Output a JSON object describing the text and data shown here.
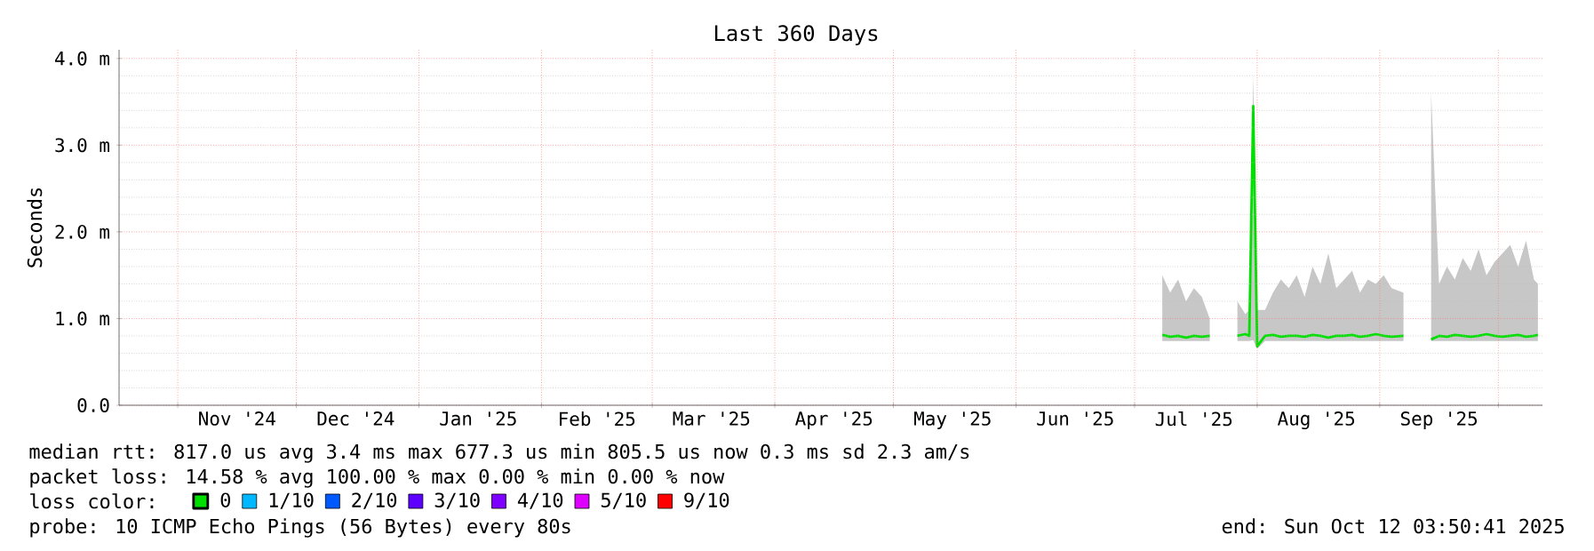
{
  "chart_data": {
    "type": "line",
    "title": "Last 360 Days",
    "ylabel": "Seconds",
    "xlim": [
      "2024-10-17T03:50",
      "2025-10-12T03:50"
    ],
    "xticks": [
      {
        "value": "2024-11-01",
        "label": null
      },
      {
        "value": "2024-11-16",
        "label": "Nov '24"
      },
      {
        "value": "2024-12-01",
        "label": null
      },
      {
        "value": "2024-12-16",
        "label": "Dec '24"
      },
      {
        "value": "2025-01-01",
        "label": null
      },
      {
        "value": "2025-01-16",
        "label": "Jan '25"
      },
      {
        "value": "2025-02-01",
        "label": null
      },
      {
        "value": "2025-02-15",
        "label": "Feb '25"
      },
      {
        "value": "2025-03-01",
        "label": null
      },
      {
        "value": "2025-03-16",
        "label": "Mar '25"
      },
      {
        "value": "2025-04-01",
        "label": null
      },
      {
        "value": "2025-04-16",
        "label": "Apr '25"
      },
      {
        "value": "2025-05-01",
        "label": null
      },
      {
        "value": "2025-05-16",
        "label": "May '25"
      },
      {
        "value": "2025-06-01",
        "label": null
      },
      {
        "value": "2025-06-16",
        "label": "Jun '25"
      },
      {
        "value": "2025-07-01",
        "label": null
      },
      {
        "value": "2025-07-16",
        "label": "Jul '25"
      },
      {
        "value": "2025-08-01",
        "label": null
      },
      {
        "value": "2025-08-16",
        "label": "Aug '25"
      },
      {
        "value": "2025-09-01",
        "label": null
      },
      {
        "value": "2025-09-16",
        "label": "Sep '25"
      },
      {
        "value": "2025-10-01",
        "label": null
      }
    ],
    "ylim": [
      0,
      4.1
    ],
    "yticks": [
      {
        "value": 0,
        "label": "0.0"
      },
      {
        "value": 1,
        "label": "1.0 m"
      },
      {
        "value": 2,
        "label": "2.0 m"
      },
      {
        "value": 3,
        "label": "3.0 m"
      },
      {
        "value": 4,
        "label": "4.0 m"
      }
    ],
    "grid": true,
    "legend": "bottom",
    "legend_title": "loss color:",
    "series": [
      {
        "name": "0",
        "color": "#00e000",
        "x": [
          "2025-07-08",
          "2025-07-10",
          "2025-07-12",
          "2025-07-14",
          "2025-07-16",
          "2025-07-18",
          "2025-07-20",
          "2025-07-23",
          "2025-07-27",
          "2025-07-29",
          "2025-07-30",
          "2025-07-31",
          "2025-08-01",
          "2025-08-03",
          "2025-08-05",
          "2025-08-07",
          "2025-08-09",
          "2025-08-11",
          "2025-08-13",
          "2025-08-15",
          "2025-08-17",
          "2025-08-19",
          "2025-08-21",
          "2025-08-23",
          "2025-08-25",
          "2025-08-27",
          "2025-08-29",
          "2025-08-31",
          "2025-09-02",
          "2025-09-04",
          "2025-09-07",
          "2025-09-10",
          "2025-09-14",
          "2025-09-16",
          "2025-09-18",
          "2025-09-20",
          "2025-09-22",
          "2025-09-24",
          "2025-09-26",
          "2025-09-28",
          "2025-09-30",
          "2025-10-02",
          "2025-10-04",
          "2025-10-06",
          "2025-10-08",
          "2025-10-10",
          "2025-10-11"
        ],
        "values": [
          0.81,
          0.79,
          0.8,
          0.78,
          0.8,
          0.79,
          0.8,
          null,
          0.8,
          0.82,
          0.8,
          3.45,
          0.68,
          0.8,
          0.81,
          0.79,
          0.8,
          0.8,
          0.79,
          0.81,
          0.8,
          0.78,
          0.8,
          0.8,
          0.81,
          0.79,
          0.8,
          0.82,
          0.8,
          0.79,
          0.8,
          null,
          0.76,
          0.8,
          0.79,
          0.81,
          0.8,
          0.79,
          0.8,
          0.82,
          0.8,
          0.79,
          0.8,
          0.81,
          0.79,
          0.8,
          0.81
        ],
        "lower": [
          0.74,
          0.74,
          0.74,
          0.74,
          0.74,
          0.74,
          0.74,
          null,
          0.74,
          0.74,
          0.74,
          0.75,
          0.65,
          0.74,
          0.74,
          0.74,
          0.74,
          0.74,
          0.74,
          0.74,
          0.74,
          0.74,
          0.74,
          0.74,
          0.74,
          0.74,
          0.74,
          0.74,
          0.74,
          0.74,
          0.74,
          null,
          0.74,
          0.74,
          0.74,
          0.74,
          0.74,
          0.74,
          0.74,
          0.74,
          0.74,
          0.74,
          0.74,
          0.74,
          0.74,
          0.74,
          0.74
        ],
        "upper": [
          1.5,
          1.3,
          1.45,
          1.2,
          1.35,
          1.25,
          1.0,
          null,
          1.2,
          1.05,
          1.1,
          3.8,
          1.1,
          1.1,
          1.3,
          1.45,
          1.35,
          1.5,
          1.25,
          1.6,
          1.4,
          1.75,
          1.35,
          1.45,
          1.55,
          1.3,
          1.45,
          1.4,
          1.5,
          1.35,
          1.3,
          null,
          3.6,
          1.4,
          1.6,
          1.45,
          1.7,
          1.55,
          1.8,
          1.5,
          1.65,
          1.75,
          1.85,
          1.6,
          1.9,
          1.45,
          1.4
        ]
      },
      {
        "name": "1/10",
        "color": "#00b8ff"
      },
      {
        "name": "2/10",
        "color": "#0059ff"
      },
      {
        "name": "3/10",
        "color": "#5e00ff"
      },
      {
        "name": "4/10",
        "color": "#7e00ff"
      },
      {
        "name": "5/10",
        "color": "#dd00ff"
      },
      {
        "name": "9/10",
        "color": "#ff0000"
      }
    ],
    "annotations": [
      "median rtt:  817.0 us avg  3.4 ms max  677.3 us min  805.5 us now  0.3 ms sd  2.3   am/s",
      "packet loss: 14.58 % avg  100.00 % max  0.00 % min  0.00 % now",
      "probe:       10 ICMP Echo Pings (56 Bytes) every 80s",
      "end: Sun Oct 12 03:50:41 2025"
    ]
  }
}
